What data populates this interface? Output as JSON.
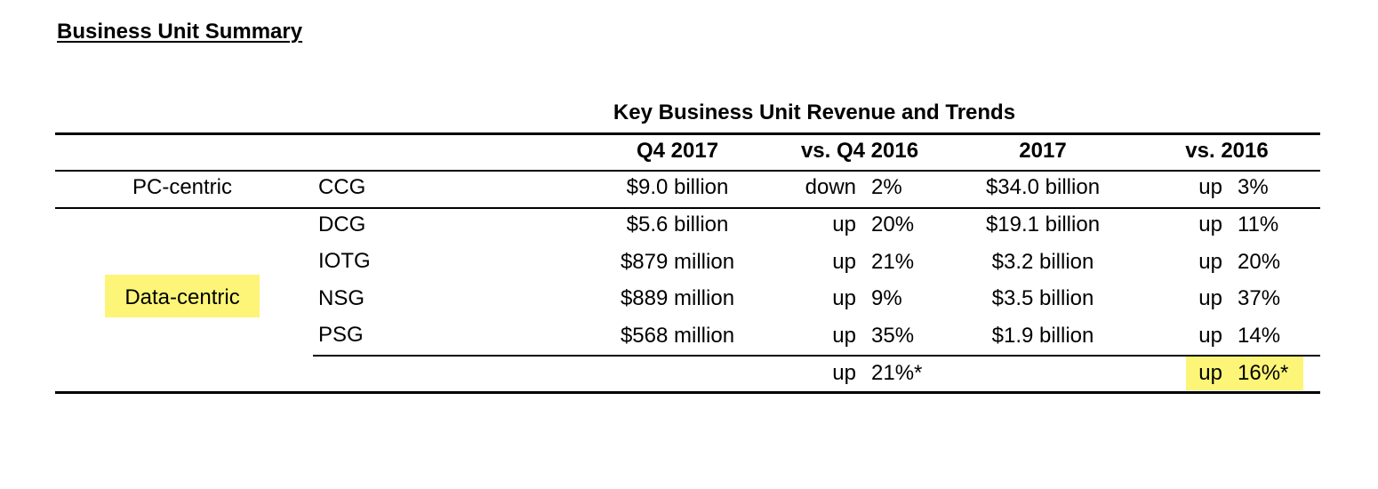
{
  "heading": "Business Unit Summary",
  "table": {
    "title": "Key Business Unit Revenue and Trends",
    "headers": {
      "q4_2017": "Q4 2017",
      "vs_q4_2016": "vs. Q4 2016",
      "y2017": "2017",
      "vs_2016": "vs. 2016"
    },
    "groups": {
      "pc_centric": "PC-centric",
      "data_centric": "Data-centric"
    },
    "rows": [
      {
        "unit": "CCG",
        "q4": "$9.0 billion",
        "q4_dir": "down",
        "q4_pct": "2%",
        "fy": "$34.0 billion",
        "fy_dir": "up",
        "fy_pct": "3%"
      },
      {
        "unit": "DCG",
        "q4": "$5.6 billion",
        "q4_dir": "up",
        "q4_pct": "20%",
        "fy": "$19.1 billion",
        "fy_dir": "up",
        "fy_pct": "11%"
      },
      {
        "unit": "IOTG",
        "q4": "$879 million",
        "q4_dir": "up",
        "q4_pct": "21%",
        "fy": "$3.2 billion",
        "fy_dir": "up",
        "fy_pct": "20%"
      },
      {
        "unit": "NSG",
        "q4": "$889 million",
        "q4_dir": "up",
        "q4_pct": "9%",
        "fy": "$3.5 billion",
        "fy_dir": "up",
        "fy_pct": "37%"
      },
      {
        "unit": "PSG",
        "q4": "$568 million",
        "q4_dir": "up",
        "q4_pct": "35%",
        "fy": "$1.9 billion",
        "fy_dir": "up",
        "fy_pct": "14%"
      }
    ],
    "total": {
      "q4_dir": "up",
      "q4_pct": "21%*",
      "fy_dir": "up",
      "fy_pct": "16%*"
    },
    "highlight_color": "#fcf578"
  }
}
